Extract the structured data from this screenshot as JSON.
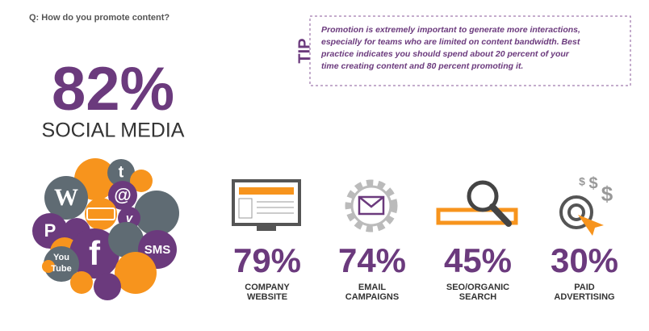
{
  "question": "Q: How do you promote content?",
  "tip": {
    "label": "TIP",
    "lines": [
      "Promotion is extremely important to generate more interactions,",
      "especially for teams who are limited on content bandwidth. Best",
      "practice indicates you should spend about 20 percent of your",
      "time creating content and 80 percent promoting it."
    ]
  },
  "headline": {
    "value": "82%",
    "label": "SOCIAL MEDIA"
  },
  "social_icons": {
    "wordpress": "W",
    "twitter": "t",
    "at": "@",
    "vimeo": "v",
    "pinterest": "P",
    "facebook": "f",
    "sms": "SMS",
    "youtube": [
      "You",
      "Tube"
    ]
  },
  "dollar_sign": "$",
  "stats": [
    {
      "value": "79%",
      "label": [
        "COMPANY",
        "WEBSITE"
      ]
    },
    {
      "value": "74%",
      "label": [
        "EMAIL",
        "CAMPAIGNS"
      ]
    },
    {
      "value": "45%",
      "label": [
        "SEO/ORGANIC",
        "SEARCH"
      ]
    },
    {
      "value": "30%",
      "label": [
        "PAID",
        "ADVERTISING"
      ]
    }
  ]
}
